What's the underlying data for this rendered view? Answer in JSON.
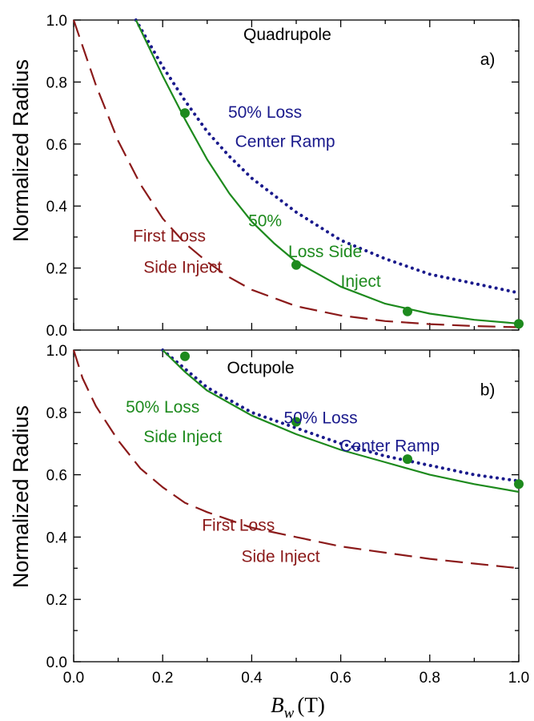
{
  "chart_data": [
    {
      "panel": "a)",
      "type": "line",
      "title": "Quadrupole",
      "xlim": [
        0.0,
        1.0
      ],
      "ylim": [
        0.0,
        1.0
      ],
      "ylabel": "Normalized Radius",
      "x_ticks": [
        0.0,
        0.2,
        0.4,
        0.6,
        0.8,
        1.0
      ],
      "y_ticks": [
        0.0,
        0.2,
        0.4,
        0.6,
        0.8,
        1.0
      ],
      "y_tick_labels": [
        "0.0",
        "0.2",
        "0.4",
        "0.6",
        "0.8",
        "1.0"
      ],
      "grid": false,
      "series": [
        {
          "name": "First Loss Side Inject",
          "style": "dashed",
          "color": "#8b1a1a",
          "x": [
            0.0,
            0.05,
            0.1,
            0.15,
            0.2,
            0.25,
            0.3,
            0.35,
            0.4,
            0.5,
            0.6,
            0.7,
            0.8,
            0.9,
            1.0
          ],
          "y": [
            1.0,
            0.79,
            0.61,
            0.47,
            0.36,
            0.28,
            0.22,
            0.17,
            0.13,
            0.077,
            0.047,
            0.029,
            0.019,
            0.013,
            0.009
          ]
        },
        {
          "name": "50% Loss Center Ramp",
          "style": "dotted",
          "color": "#1a1a8c",
          "x": [
            0.14,
            0.2,
            0.25,
            0.3,
            0.35,
            0.4,
            0.5,
            0.6,
            0.7,
            0.8,
            0.9,
            1.0
          ],
          "y": [
            1.0,
            0.85,
            0.74,
            0.64,
            0.56,
            0.49,
            0.38,
            0.29,
            0.23,
            0.18,
            0.15,
            0.12
          ]
        },
        {
          "name": "50% Loss Side Inject",
          "style": "solid",
          "color": "#1d8a1d",
          "x": [
            0.14,
            0.2,
            0.25,
            0.3,
            0.35,
            0.4,
            0.45,
            0.5,
            0.6,
            0.7,
            0.8,
            0.9,
            1.0
          ],
          "y": [
            1.0,
            0.82,
            0.68,
            0.55,
            0.44,
            0.35,
            0.28,
            0.22,
            0.14,
            0.085,
            0.053,
            0.033,
            0.021
          ]
        },
        {
          "name": "50% Loss Side Inject (points)",
          "style": "markers",
          "color": "#1d8a1d",
          "x": [
            0.25,
            0.5,
            0.75,
            1.0
          ],
          "y": [
            0.7,
            0.21,
            0.06,
            0.02
          ]
        }
      ],
      "annotations": [
        {
          "text": "Quadrupole",
          "x": 0.48,
          "y": 0.935,
          "color": "#000000"
        },
        {
          "text": "a)",
          "x": 0.93,
          "y": 0.855,
          "color": "#000000"
        },
        {
          "text": "50% Loss",
          "x": 0.43,
          "y": 0.685,
          "color": "#1a1a8c"
        },
        {
          "text": "Center Ramp",
          "x": 0.475,
          "y": 0.59,
          "color": "#1a1a8c"
        },
        {
          "text": "50%",
          "x": 0.43,
          "y": 0.335,
          "color": "#1d8a1d"
        },
        {
          "text": "Loss Side",
          "x": 0.565,
          "y": 0.235,
          "color": "#1d8a1d"
        },
        {
          "text": "Inject",
          "x": 0.645,
          "y": 0.14,
          "color": "#1d8a1d"
        },
        {
          "text": "First Loss",
          "x": 0.215,
          "y": 0.285,
          "color": "#8b1a1a"
        },
        {
          "text": "Side Inject",
          "x": 0.245,
          "y": 0.185,
          "color": "#8b1a1a"
        }
      ]
    },
    {
      "panel": "b)",
      "type": "line",
      "title": "Octupole",
      "xlim": [
        0.0,
        1.0
      ],
      "ylim": [
        0.0,
        1.0
      ],
      "xlabel": "B_w (T)",
      "ylabel": "Normalized Radius",
      "x_ticks": [
        0.0,
        0.2,
        0.4,
        0.6,
        0.8,
        1.0
      ],
      "x_tick_labels": [
        "0.0",
        "0.2",
        "0.4",
        "0.6",
        "0.8",
        "1.0"
      ],
      "y_ticks": [
        0.0,
        0.2,
        0.4,
        0.6,
        0.8,
        1.0
      ],
      "y_tick_labels": [
        "0.0",
        "0.2",
        "0.4",
        "0.6",
        "0.8",
        "1.0"
      ],
      "grid": false,
      "series": [
        {
          "name": "First Loss Side Inject",
          "style": "dashed",
          "color": "#8b1a1a",
          "x": [
            0.0,
            0.02,
            0.05,
            0.1,
            0.15,
            0.2,
            0.25,
            0.3,
            0.4,
            0.5,
            0.6,
            0.7,
            0.8,
            0.9,
            1.0
          ],
          "y": [
            1.0,
            0.91,
            0.82,
            0.71,
            0.62,
            0.56,
            0.51,
            0.48,
            0.43,
            0.4,
            0.37,
            0.35,
            0.33,
            0.315,
            0.3
          ]
        },
        {
          "name": "50% Loss Center Ramp",
          "style": "dotted",
          "color": "#1a1a8c",
          "x": [
            0.2,
            0.25,
            0.3,
            0.4,
            0.5,
            0.6,
            0.7,
            0.8,
            0.9,
            1.0
          ],
          "y": [
            1.0,
            0.94,
            0.88,
            0.8,
            0.75,
            0.7,
            0.66,
            0.63,
            0.6,
            0.58
          ]
        },
        {
          "name": "50% Loss Side Inject",
          "style": "solid",
          "color": "#1d8a1d",
          "x": [
            0.2,
            0.25,
            0.3,
            0.4,
            0.5,
            0.6,
            0.7,
            0.8,
            0.9,
            1.0
          ],
          "y": [
            1.0,
            0.93,
            0.87,
            0.79,
            0.73,
            0.68,
            0.64,
            0.6,
            0.57,
            0.545
          ]
        },
        {
          "name": "50% Loss Side Inject (points)",
          "style": "markers",
          "color": "#1d8a1d",
          "x": [
            0.25,
            0.5,
            0.75,
            1.0
          ],
          "y": [
            0.98,
            0.77,
            0.65,
            0.57
          ]
        }
      ],
      "annotations": [
        {
          "text": "Octupole",
          "x": 0.42,
          "y": 0.925,
          "color": "#000000"
        },
        {
          "text": "b)",
          "x": 0.93,
          "y": 0.855,
          "color": "#000000"
        },
        {
          "text": "50% Loss",
          "x": 0.555,
          "y": 0.765,
          "color": "#1a1a8c"
        },
        {
          "text": "Center Ramp",
          "x": 0.71,
          "y": 0.675,
          "color": "#1a1a8c"
        },
        {
          "text": "50% Loss",
          "x": 0.2,
          "y": 0.8,
          "color": "#1d8a1d"
        },
        {
          "text": "Side Inject",
          "x": 0.245,
          "y": 0.705,
          "color": "#1d8a1d"
        },
        {
          "text": "First Loss",
          "x": 0.37,
          "y": 0.42,
          "color": "#8b1a1a"
        },
        {
          "text": "Side Inject",
          "x": 0.465,
          "y": 0.32,
          "color": "#8b1a1a"
        }
      ]
    }
  ],
  "axes_text": {
    "ylabel": "Normalized Radius",
    "xlabel_symbol": "B",
    "xlabel_subscript": "w",
    "xlabel_unit": "(T)"
  }
}
